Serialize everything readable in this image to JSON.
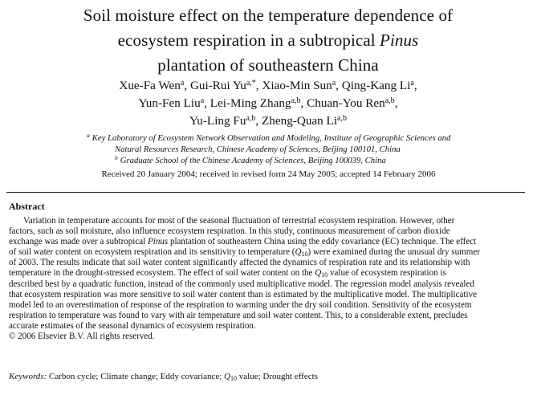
{
  "title": {
    "line1": "Soil moisture effect on the temperature dependence of",
    "line2_a": "ecosystem respiration in a subtropical",
    "line2_b": "Pinus",
    "line3": "plantation of southeastern China"
  },
  "authors": [
    {
      "name": "Xue-Fa Wen",
      "sup": "a"
    },
    {
      "name": "Gui-Rui Yu",
      "sup": "a,*"
    },
    {
      "name": "Xiao-Min Sun",
      "sup": "a"
    },
    {
      "name": "Qing-Kang Li",
      "sup": "a"
    },
    {
      "name": "Yun-Fen Liu",
      "sup": "a"
    },
    {
      "name": "Lei-Ming Zhang",
      "sup": "a,b"
    },
    {
      "name": "Chuan-You Ren",
      "sup": "a,b"
    },
    {
      "name": "Yu-Ling Fu",
      "sup": "a,b"
    },
    {
      "name": "Zheng-Quan Li",
      "sup": "a,b"
    }
  ],
  "affiliations": {
    "a_label": "a",
    "a_line1": "Key Laboratory of Ecosystem Network Observation and Modeling, Institute of Geographic Sciences and",
    "a_line2": "Natural Resources Research, Chinese Academy of Sciences, Beijing 100101, China",
    "b_label": "b",
    "b_line1": "Graduate School of the Chinese Academy of Sciences, Beijing 100039, China"
  },
  "received": "Received 20 January 2004; received in revised form 24 May 2005; accepted 14 February 2006",
  "abstract": {
    "heading": "Abstract",
    "l1": "Variation in temperature accounts for most of the seasonal fluctuation of terrestrial ecosystem respiration. However, other",
    "l2": "factors, such as soil moisture, also influence ecosystem respiration. In this study, continuous measurement of carbon dioxide",
    "l3_a": "exchange was made over a subtropical",
    "l3_b": "Pinus",
    "l3_c": "plantation of southeastern China using the eddy covariance (EC) technique. The effect",
    "l4_a": "of soil water content on ecosystem respiration and its sensitivity to temperature (",
    "l4_b": "Q",
    "l4_sub": "10",
    "l4_c": ") were examined during the unusual dry summer",
    "l5": "of 2003. The results indicate that soil water content significantly affected the dynamics of respiration rate and its relationship with",
    "l6": "temperature in the drought-stressed ecosystem. The effect of soil water content on the",
    "l6_q": "Q",
    "l6_sub": "10",
    "l6_c": "value of ecosystem respiration is",
    "l7": "described best by a quadratic function, instead of the commonly used multiplicative model. The regression model analysis revealed",
    "l8": "that ecosystem respiration was more sensitive to soil water content than is estimated by the multiplicative model. The multiplicative",
    "l9": "model led to an overestimation of response of the respiration to warming under the dry soil condition. Sensitivity of the ecosystem",
    "l10": "respiration to temperature was found to vary with air temperature and soil water content. This, to a considerable extent, precludes",
    "l11": "accurate estimates of the seasonal dynamics of ecosystem respiration.",
    "copyright": "© 2006 Elsevier B.V. All rights reserved."
  },
  "keywords": {
    "label": "Keywords:",
    "k1": "Carbon cycle; Climate change; Eddy covariance;",
    "k2_q": "Q",
    "k2_sub": "10",
    "k2_c": "value; Drought effects"
  }
}
